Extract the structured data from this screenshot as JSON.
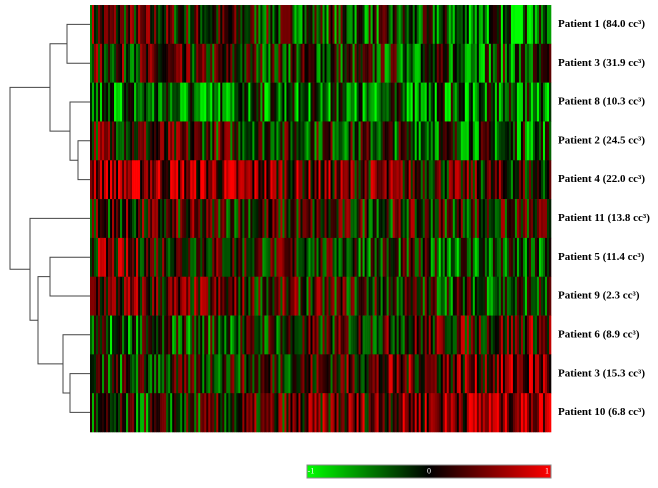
{
  "rows": [
    "Patient 1 (84.0 cc³)",
    "Patient 3 (31.9 cc³)",
    "Patient 8 (10.3 cc³)",
    "Patient 2 (24.5 cc³)",
    "Patient 4 (22.0 cc³)",
    "Patient 11 (13.8 cc³)",
    "Patient 5 (11.4 cc³)",
    "Patient 9 (2.3 cc³)",
    "Patient 6 (8.9 cc³)",
    "Patient 3 (15.3 cc³)",
    "Patient 10 (6.8 cc³)"
  ],
  "colorbar": {
    "ticks": [
      -1,
      0,
      1
    ]
  }
}
